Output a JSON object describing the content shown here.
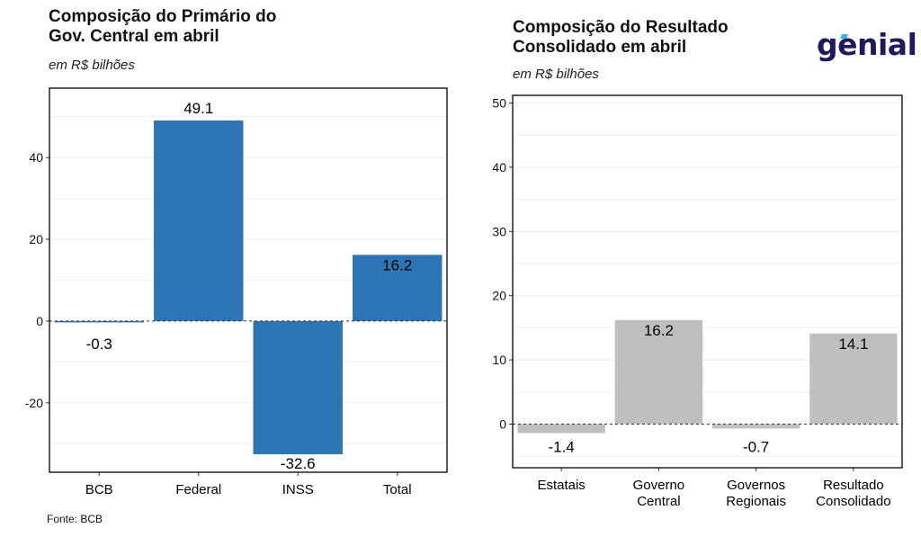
{
  "source": "Fonte: BCB",
  "brand": {
    "name": "genial",
    "accent": "#3ab4e6",
    "color": "#1f1a5c"
  },
  "chart_data": [
    {
      "type": "bar",
      "title": "Composição do Primário do\nGov. Central em abril",
      "subtitle": "em R$ bilhões",
      "categories": [
        "BCB",
        "Federal",
        "INSS",
        "Total"
      ],
      "values": [
        -0.3,
        49.1,
        -32.6,
        16.2
      ],
      "value_labels": [
        "-0.3",
        "49.1",
        "-32.6",
        "16.2"
      ],
      "yticks": [
        -20,
        0,
        20,
        40
      ],
      "ylim": [
        -37,
        57
      ],
      "bar_color": "#2e75b6",
      "zero_line": "dashed",
      "grid": true,
      "legend": "none"
    },
    {
      "type": "bar",
      "title": "Composição do Resultado\nConsolidado em abril",
      "subtitle": "em R$ bilhões",
      "categories": [
        "Estatais",
        "Governo\nCentral",
        "Governos\nRegionais",
        "Resultado\nConsolidado"
      ],
      "values": [
        -1.4,
        16.2,
        -0.7,
        14.1
      ],
      "value_labels": [
        "-1.4",
        "16.2",
        "-0.7",
        "14.1"
      ],
      "yticks": [
        0,
        10,
        20,
        30,
        40,
        50
      ],
      "ylim": [
        -6.8,
        51.2
      ],
      "bar_color": "#bfbfbf",
      "zero_line": "dashed",
      "grid": true,
      "legend": "none"
    }
  ]
}
